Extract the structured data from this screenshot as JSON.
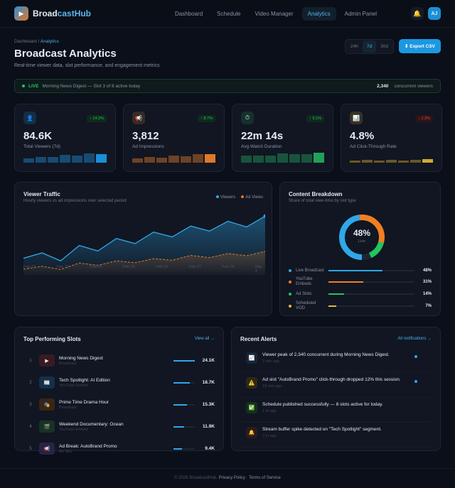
{
  "nav": {
    "logo_icon": "play-icon",
    "brand_a": "Broad",
    "brand_b": "castHub",
    "links": [
      "Dashboard",
      "Schedule",
      "Video Manager",
      "Analytics",
      "Admin Panel"
    ],
    "active": "Analytics",
    "bell_icon": "bell-icon",
    "avatar": "AJ"
  },
  "header": {
    "breadcrumb_root": "Dashboard",
    "breadcrumb_sep": "/",
    "breadcrumb_current": "Analytics",
    "title": "Broadcast Analytics",
    "subtitle": "Real-time viewer data, slot performance, and engagement metrics",
    "ranges": [
      "24h",
      "7d",
      "30d"
    ],
    "active_range": "7d",
    "export_label": "⬇ Export CSV"
  },
  "live": {
    "label": "LIVE",
    "text": "Morning News Digest — Slot 3 of 8 active today",
    "count": "2,340",
    "count_label": "concurrent viewers"
  },
  "kpis": [
    {
      "icon": "user-icon",
      "glyph": "👤",
      "value": "84.6K",
      "label": "Total Viewers (7d)",
      "change": "↑ 14.2%",
      "trend": "up",
      "color": "#1c8fd6",
      "bars": [
        0.45,
        0.6,
        0.55,
        0.8,
        0.75,
        0.9,
        0.85
      ]
    },
    {
      "icon": "megaphone-icon",
      "glyph": "📢",
      "value": "3,812",
      "label": "Ad Impressions",
      "change": "↑ 8.7%",
      "trend": "up",
      "color": "#e0782a",
      "bars": [
        0.4,
        0.55,
        0.5,
        0.75,
        0.65,
        0.85,
        0.85
      ]
    },
    {
      "icon": "stopwatch-icon",
      "glyph": "⏱",
      "value": "22m 14s",
      "label": "Avg Watch Duration",
      "change": "↑ 5.1%",
      "trend": "up",
      "color": "#22a05a",
      "bars": [
        0.7,
        0.75,
        0.75,
        0.9,
        0.85,
        0.85,
        1
      ]
    },
    {
      "icon": "bar-chart-icon",
      "glyph": "📊",
      "value": "4.8%",
      "label": "Ad Click-Through Rate",
      "change": "↓ 2.3%",
      "trend": "down",
      "color": "#d4a82a",
      "bars": [
        0.2,
        0.3,
        0.2,
        0.3,
        0.25,
        0.3,
        0.35
      ]
    }
  ],
  "traffic": {
    "title": "Viewer Traffic",
    "subtitle": "Hourly viewers vs ad impressions over selected period"
  },
  "chart_data": {
    "type": "area",
    "x_ticks": [
      "Feb 22",
      "Feb 23",
      "Feb 24",
      "Feb 25",
      "Feb 26",
      "Feb 27",
      "Feb 28",
      "Mar 1"
    ],
    "grid": false,
    "legend": "top-right",
    "series": [
      {
        "name": "Viewers",
        "color": "#2ea8e8",
        "values": [
          52,
          69,
          44,
          92,
          75,
          114,
          98,
          134,
          119,
          153,
          137,
          168,
          150,
          184
        ]
      },
      {
        "name": "Ad Views",
        "color": "#e0782a",
        "values": [
          18,
          27,
          17,
          37,
          30,
          44,
          38,
          51,
          46,
          61,
          54,
          67,
          60,
          74
        ]
      }
    ]
  },
  "breakdown": {
    "title": "Content Breakdown",
    "subtitle": "Share of total view-time by slot type",
    "center_value": "48%",
    "center_label": "Live",
    "items": [
      {
        "name": "Live Broadcast",
        "pct": "48%",
        "value": 48,
        "color": "#2ea8e8"
      },
      {
        "name": "YouTube Embeds",
        "pct": "31%",
        "value": 31,
        "color": "#f07f22"
      },
      {
        "name": "Ad Slots",
        "pct": "14%",
        "value": 14,
        "color": "#22c55e"
      },
      {
        "name": "Scheduled VOD",
        "pct": "7%",
        "value": 7,
        "color": "#e2b93b"
      }
    ]
  },
  "slots": {
    "title": "Top Performing Slots",
    "link": "View all →",
    "items": [
      {
        "rank": "1",
        "icon": "play-icon",
        "glyph": "▶",
        "bg": "#3a1a22",
        "name": "Morning News Digest",
        "type": "Broadcast",
        "value": "24.1K",
        "fill": 1
      },
      {
        "rank": "2",
        "icon": "newspaper-icon",
        "glyph": "📰",
        "bg": "#14304a",
        "name": "Tech Spotlight: AI Edition",
        "type": "YouTube Embed",
        "value": "18.7K",
        "fill": 0.78
      },
      {
        "rank": "3",
        "icon": "theater-icon",
        "glyph": "🎭",
        "bg": "#3a2418",
        "name": "Prime Time Drama Hour",
        "type": "Broadcast",
        "value": "15.3K",
        "fill": 0.63
      },
      {
        "rank": "4",
        "icon": "film-icon",
        "glyph": "🎬",
        "bg": "#163324",
        "name": "Weekend Documentary: Ocean",
        "type": "YouTube Embed",
        "value": "11.9K",
        "fill": 0.49
      },
      {
        "rank": "5",
        "icon": "megaphone-icon",
        "glyph": "📢",
        "bg": "#2a2246",
        "name": "Ad Break: AutoBrand Promo",
        "type": "Ad Slot",
        "value": "9.4K",
        "fill": 0.39
      }
    ]
  },
  "alerts": {
    "title": "Recent Alerts",
    "link": "All notifications →",
    "items": [
      {
        "icon": "trend-up-icon",
        "glyph": "📈",
        "bg": "#14263a",
        "text": "Viewer peak of 2,340 concurrent during Morning News Digest.",
        "time": "2 min ago",
        "unread": true
      },
      {
        "icon": "warning-icon",
        "glyph": "⚠️",
        "bg": "#2e2814",
        "text": "Ad slot \"AutoBrand Promo\" click-through dropped 12% this session.",
        "time": "18 min ago",
        "unread": true
      },
      {
        "icon": "check-icon",
        "glyph": "✅",
        "bg": "#14301e",
        "text": "Schedule published successfully — 8 slots active for today.",
        "time": "1 hr ago",
        "unread": false
      },
      {
        "icon": "bell-icon",
        "glyph": "🔔",
        "bg": "#2e1a1a",
        "text": "Stream buffer spike detected on \"Tech Spotlight\" segment.",
        "time": "3 hr ago",
        "unread": false
      }
    ]
  },
  "footer": {
    "copyright": "© 2026 BroadcastHub.",
    "privacy": "Privacy Policy",
    "sep": "·",
    "terms": "Terms of Service"
  }
}
